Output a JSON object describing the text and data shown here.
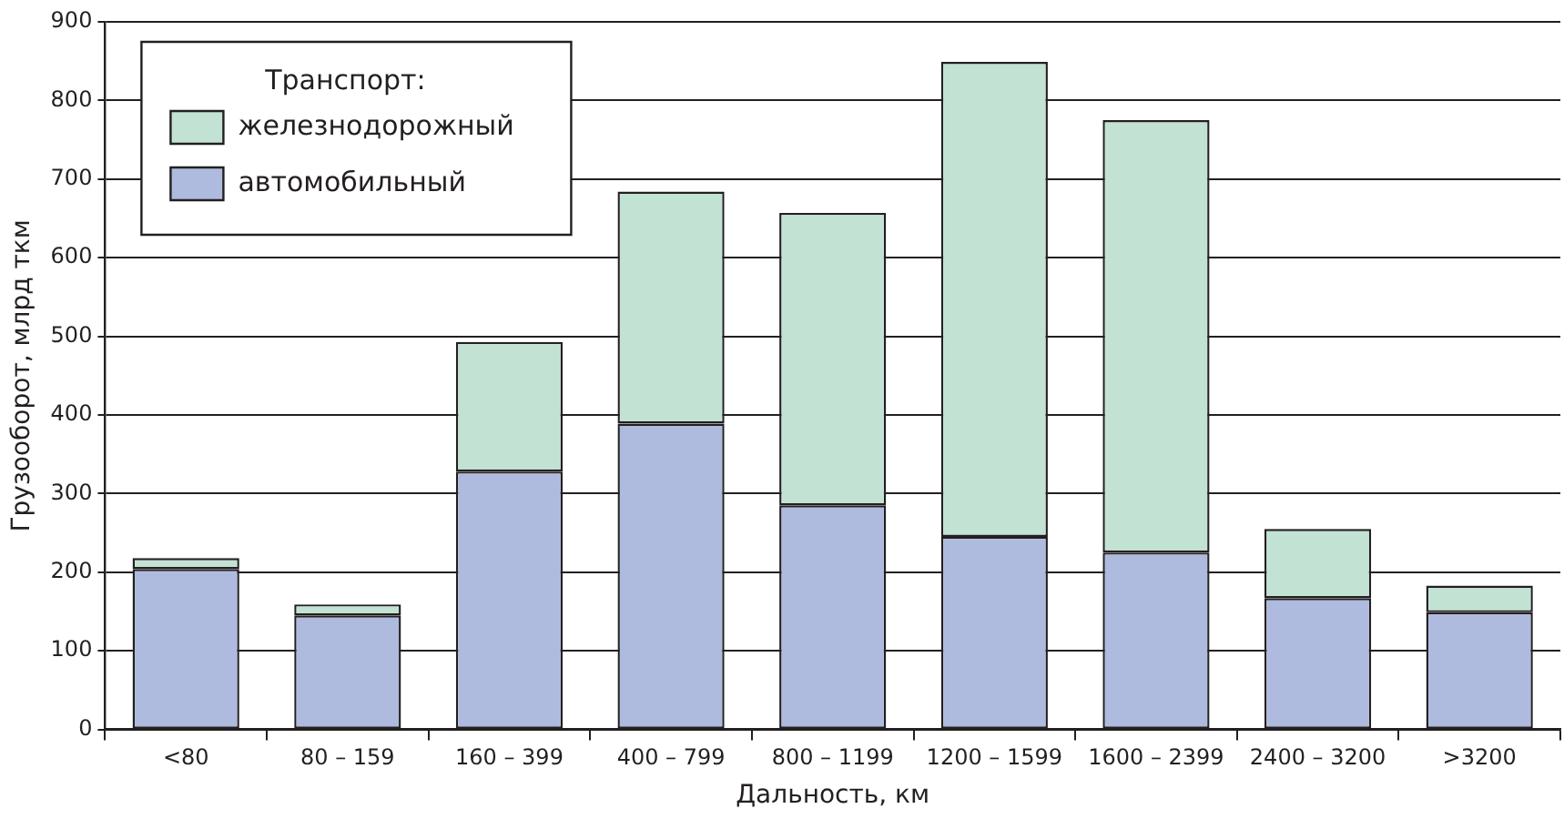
{
  "chart_data": {
    "type": "bar",
    "stacked": true,
    "xlabel": "Дальность, км",
    "ylabel": "Грузооборот, млрд ткм",
    "legend_title": "Транспорт:",
    "categories": [
      "<80",
      "80 – 159",
      "160 – 399",
      "400 – 799",
      "800 – 1199",
      "1200 – 1599",
      "1600 – 2399",
      "2400 – 3200",
      ">3200"
    ],
    "series": [
      {
        "name": "автомобильный",
        "color": "#aebbdf",
        "values": [
          204,
          145,
          328,
          389,
          285,
          245,
          225,
          167,
          149
        ]
      },
      {
        "name": "железнодорожный",
        "color": "#c2e2d4",
        "values": [
          14,
          14,
          165,
          295,
          372,
          604,
          550,
          88,
          34
        ]
      }
    ],
    "ylim": [
      0,
      900
    ],
    "yticks": [
      0,
      100,
      200,
      300,
      400,
      500,
      600,
      700,
      800,
      900
    ],
    "grid": "y",
    "legend": "top left"
  }
}
